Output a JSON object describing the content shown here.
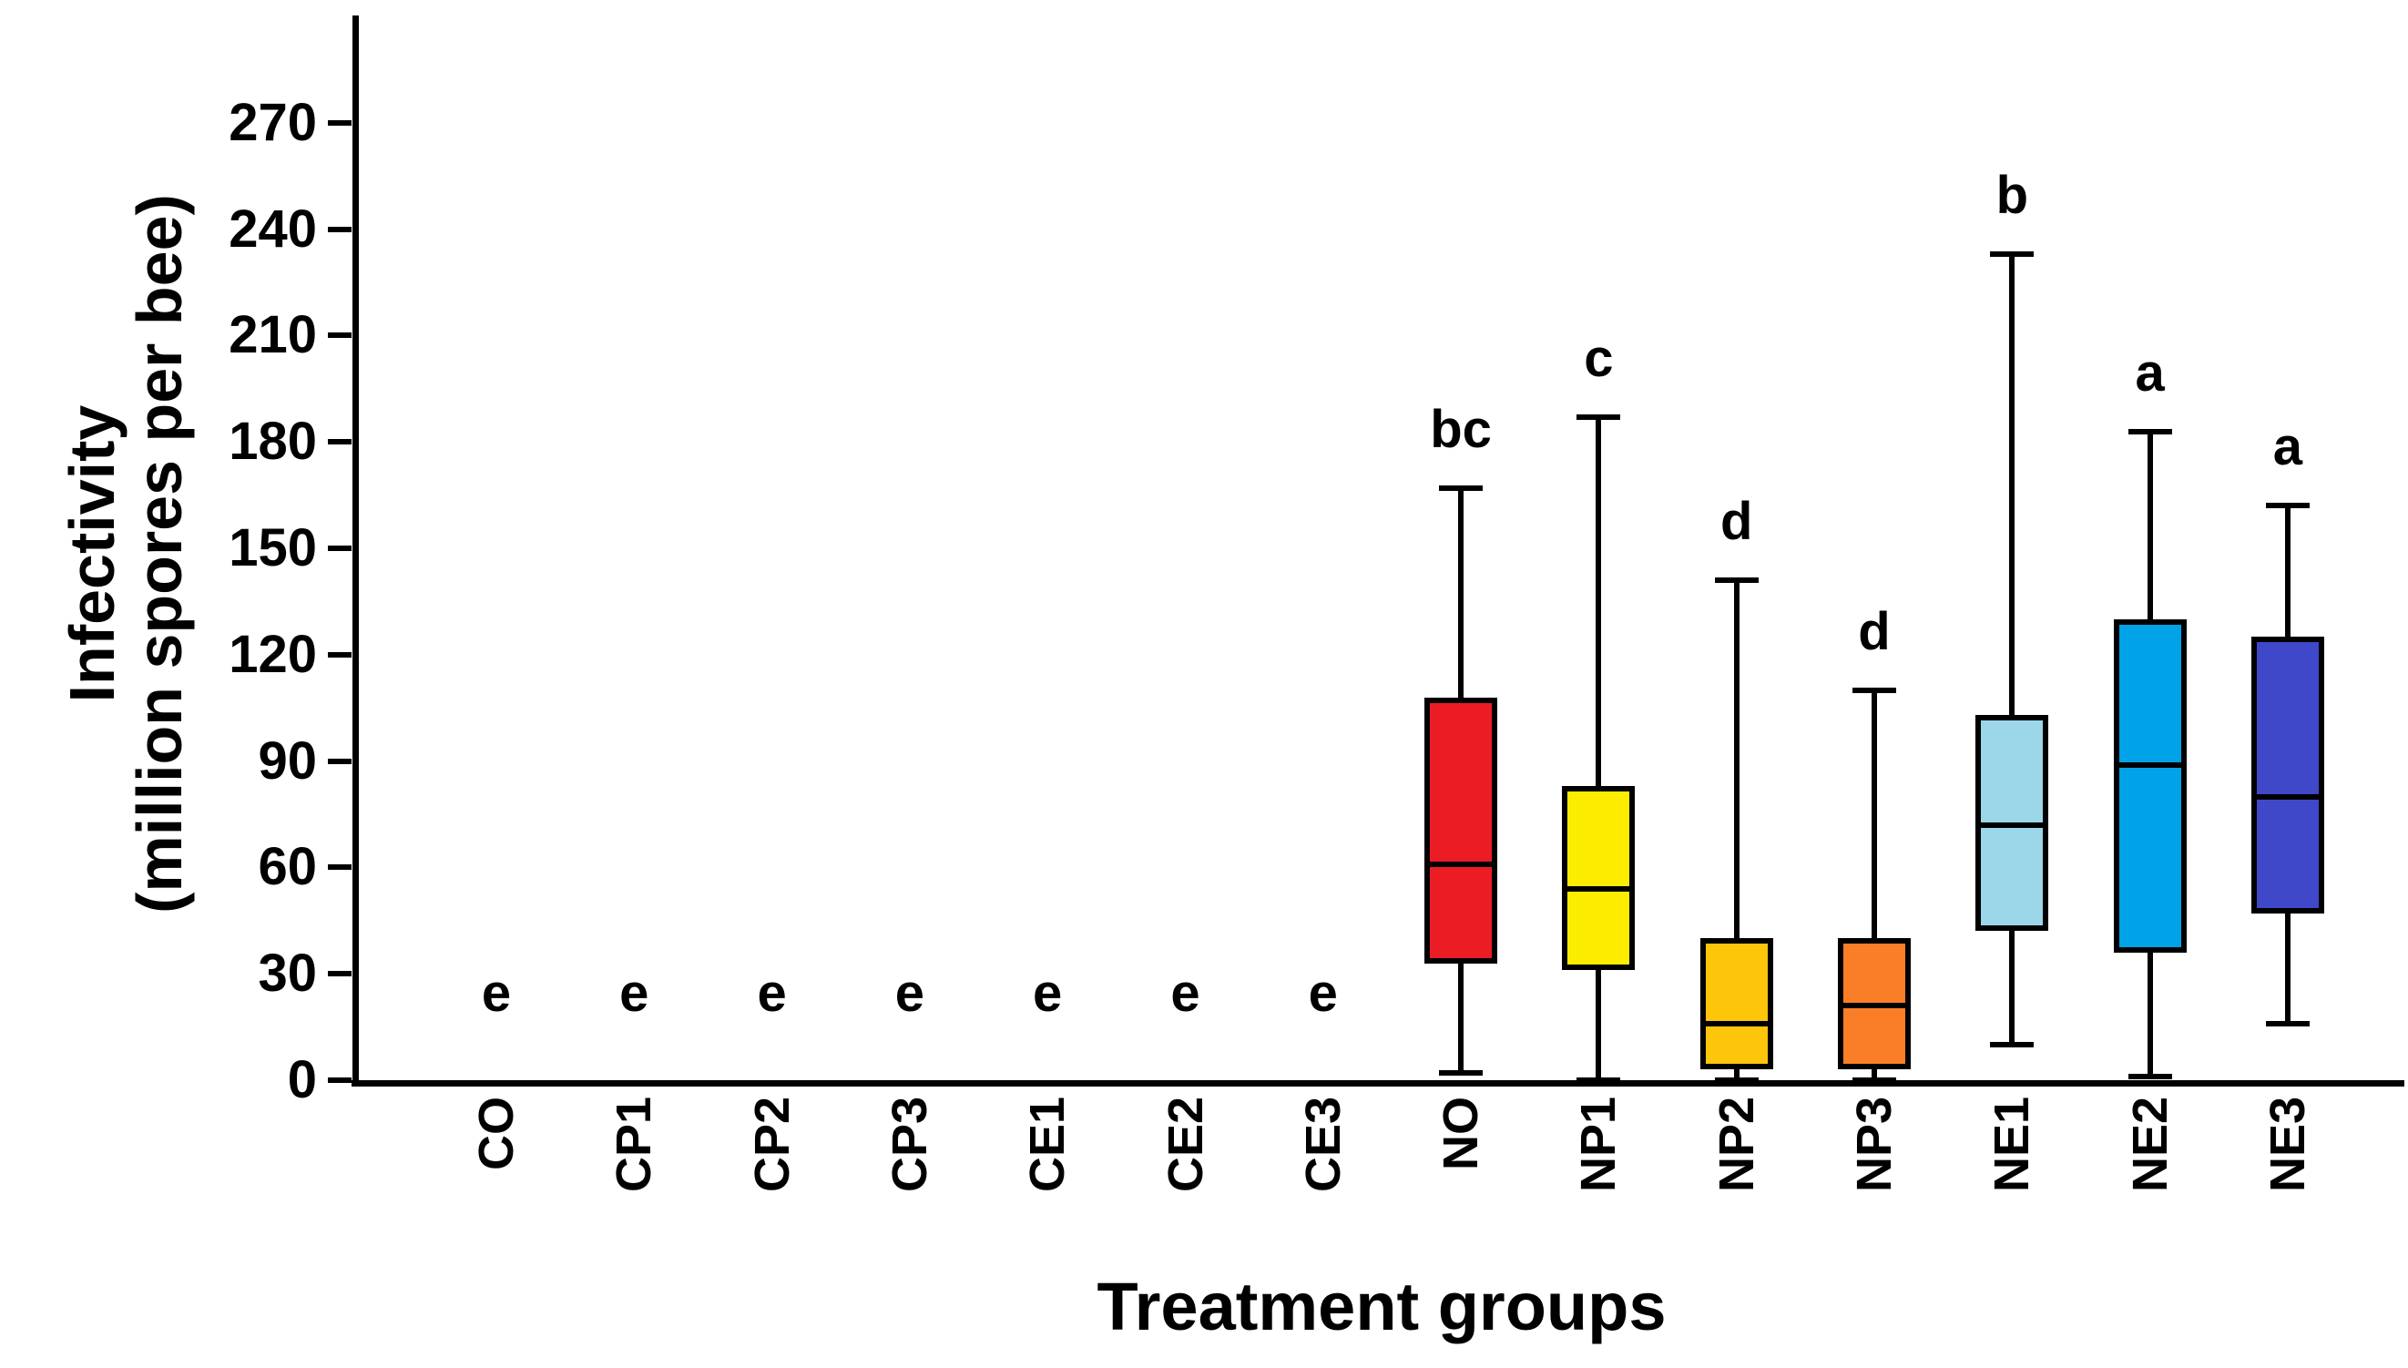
{
  "figure": {
    "background": "#ffffff"
  },
  "axis_titles": {
    "x": "Treatment groups",
    "y_line1": "Infectivity",
    "y_line2": "(million spores per bee)"
  },
  "chart_data": {
    "type": "boxplot",
    "title": "",
    "xlabel": "Treatment groups",
    "ylabel": "Infectivity (million spores per bee)",
    "y_axis": {
      "min": 0,
      "max": 300,
      "ticks": [
        0,
        30,
        60,
        90,
        120,
        150,
        180,
        210,
        240,
        270
      ],
      "grid": false
    },
    "categories": [
      "CO",
      "CP1",
      "CP2",
      "CP3",
      "CE1",
      "CE2",
      "CE3",
      "NO",
      "NP1",
      "NP2",
      "NP3",
      "NE1",
      "NE2",
      "NE3"
    ],
    "annotation_color": "#000000",
    "groups": [
      {
        "label": "CO",
        "letter": "e",
        "color": null,
        "box": null
      },
      {
        "label": "CP1",
        "letter": "e",
        "color": null,
        "box": null
      },
      {
        "label": "CP2",
        "letter": "e",
        "color": null,
        "box": null
      },
      {
        "label": "CP3",
        "letter": "e",
        "color": null,
        "box": null
      },
      {
        "label": "CE1",
        "letter": "e",
        "color": null,
        "box": null
      },
      {
        "label": "CE2",
        "letter": "e",
        "color": null,
        "box": null
      },
      {
        "label": "CE3",
        "letter": "e",
        "color": null,
        "box": null
      },
      {
        "label": "NO",
        "letter": "bc",
        "color": "#EC1C24",
        "box": {
          "min": 2,
          "q1": 33,
          "median": 61,
          "q3": 108,
          "max": 167
        }
      },
      {
        "label": "NP1",
        "letter": "c",
        "color": "#FCEC00",
        "box": {
          "min": 0,
          "q1": 31,
          "median": 54,
          "q3": 83,
          "max": 187
        }
      },
      {
        "label": "NP2",
        "letter": "d",
        "color": "#FDC60B",
        "box": {
          "min": 0,
          "q1": 3,
          "median": 16,
          "q3": 40,
          "max": 141
        }
      },
      {
        "label": "NP3",
        "letter": "d",
        "color": "#FA7E27",
        "box": {
          "min": 0,
          "q1": 3,
          "median": 21,
          "q3": 40,
          "max": 110
        }
      },
      {
        "label": "NE1",
        "letter": "b",
        "color": "#9BD7E9",
        "box": {
          "min": 10,
          "q1": 42,
          "median": 72,
          "q3": 103,
          "max": 233
        }
      },
      {
        "label": "NE2",
        "letter": "a",
        "color": "#00A2E8",
        "box": {
          "min": 1,
          "q1": 36,
          "median": 89,
          "q3": 130,
          "max": 183
        }
      },
      {
        "label": "NE3",
        "letter": "a",
        "color": "#3F48C8",
        "box": {
          "min": 16,
          "q1": 47,
          "median": 80,
          "q3": 125,
          "max": 162
        }
      }
    ]
  }
}
